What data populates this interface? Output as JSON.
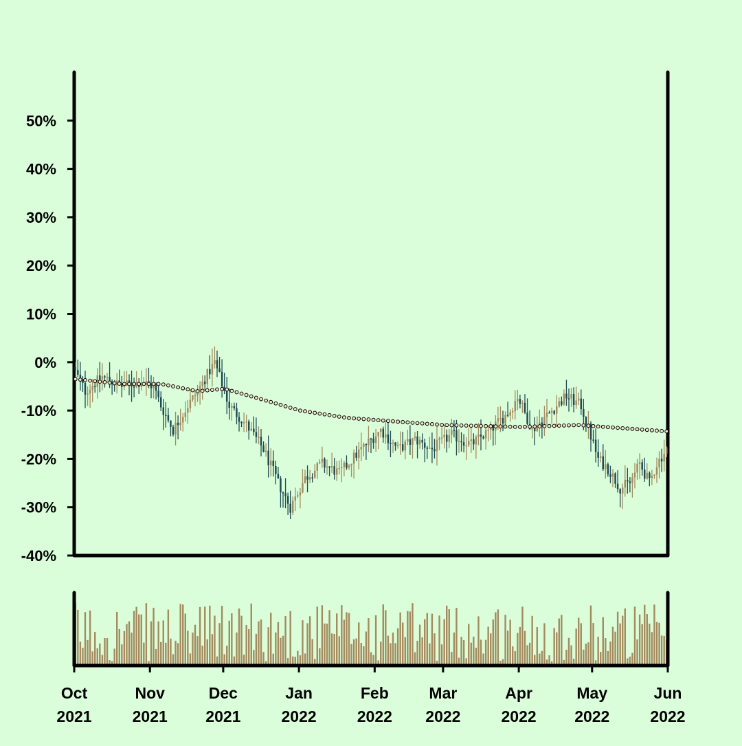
{
  "chart_data": {
    "type": "candlestick",
    "title": "",
    "xlabel": "",
    "ylabel": "",
    "colors": {
      "background": "#d9fed9",
      "up": "#a68a5e",
      "down": "#1e4a55",
      "moving_average_dots": "#f2e4c4",
      "axis": "#000000"
    },
    "price_panel": {
      "ylim": [
        -40,
        60
      ],
      "yticks": [
        -40,
        -30,
        -20,
        -10,
        0,
        10,
        20,
        30,
        40,
        50
      ],
      "ytick_labels": [
        "-40%",
        "-30%",
        "-20%",
        "-10%",
        "0%",
        "10%",
        "20%",
        "30%",
        "40%",
        "50%"
      ],
      "series": [
        {
          "kind": "daily-change-percent",
          "start_date": "2021-10-01",
          "end_date": "2022-05-31",
          "checkpoints": [
            {
              "date": "2021-10-01",
              "close": -2
            },
            {
              "date": "2021-10-05",
              "close": -6
            },
            {
              "date": "2021-10-12",
              "close": -3
            },
            {
              "date": "2021-10-20",
              "close": -5
            },
            {
              "date": "2021-10-28",
              "close": -4
            },
            {
              "date": "2021-11-02",
              "close": -5
            },
            {
              "date": "2021-11-05",
              "close": -9
            },
            {
              "date": "2021-11-10",
              "close": -14
            },
            {
              "date": "2021-11-16",
              "close": -9
            },
            {
              "date": "2021-11-20",
              "close": -6
            },
            {
              "date": "2021-11-27",
              "close": 0
            },
            {
              "date": "2021-12-03",
              "close": -9
            },
            {
              "date": "2021-12-10",
              "close": -13
            },
            {
              "date": "2021-12-17",
              "close": -18
            },
            {
              "date": "2021-12-23",
              "close": -25
            },
            {
              "date": "2021-12-28",
              "close": -30
            },
            {
              "date": "2022-01-03",
              "close": -24
            },
            {
              "date": "2022-01-10",
              "close": -21
            },
            {
              "date": "2022-01-17",
              "close": -23
            },
            {
              "date": "2022-01-26",
              "close": -18
            },
            {
              "date": "2022-02-03",
              "close": -14
            },
            {
              "date": "2022-02-10",
              "close": -18
            },
            {
              "date": "2022-02-17",
              "close": -16
            },
            {
              "date": "2022-02-24",
              "close": -18
            },
            {
              "date": "2022-03-04",
              "close": -15
            },
            {
              "date": "2022-03-12",
              "close": -17
            },
            {
              "date": "2022-03-20",
              "close": -14
            },
            {
              "date": "2022-03-28",
              "close": -10
            },
            {
              "date": "2022-03-31",
              "close": -7
            },
            {
              "date": "2022-04-06",
              "close": -14
            },
            {
              "date": "2022-04-14",
              "close": -10
            },
            {
              "date": "2022-04-20",
              "close": -7
            },
            {
              "date": "2022-04-26",
              "close": -9
            },
            {
              "date": "2022-05-03",
              "close": -20
            },
            {
              "date": "2022-05-07",
              "close": -22
            },
            {
              "date": "2022-05-12",
              "close": -26
            },
            {
              "date": "2022-05-16",
              "close": -25
            },
            {
              "date": "2022-05-20",
              "close": -21
            },
            {
              "date": "2022-05-24",
              "close": -25
            },
            {
              "date": "2022-05-27",
              "close": -21
            },
            {
              "date": "2022-05-31",
              "close": -18
            }
          ]
        },
        {
          "kind": "moving-average",
          "checkpoints": [
            {
              "date": "2021-10-01",
              "value": -3.5
            },
            {
              "date": "2021-10-20",
              "value": -4.5
            },
            {
              "date": "2021-11-05",
              "value": -4.5
            },
            {
              "date": "2021-11-20",
              "value": -6
            },
            {
              "date": "2021-12-01",
              "value": -5.5
            },
            {
              "date": "2021-12-15",
              "value": -7.5
            },
            {
              "date": "2022-01-01",
              "value": -10
            },
            {
              "date": "2022-01-20",
              "value": -11.5
            },
            {
              "date": "2022-02-10",
              "value": -12.3
            },
            {
              "date": "2022-03-01",
              "value": -13
            },
            {
              "date": "2022-04-01",
              "value": -13.4
            },
            {
              "date": "2022-04-25",
              "value": -13
            },
            {
              "date": "2022-05-31",
              "value": -14.3
            }
          ]
        }
      ]
    },
    "volume_panel": {
      "shown": true,
      "values_unlabeled": true
    },
    "xticks": [
      {
        "date": "2021-10-01",
        "line1": "Oct",
        "line2": "2021"
      },
      {
        "date": "2021-11-01",
        "line1": "Nov",
        "line2": "2021"
      },
      {
        "date": "2021-12-01",
        "line1": "Dec",
        "line2": "2021"
      },
      {
        "date": "2022-01-01",
        "line1": "Jan",
        "line2": "2022"
      },
      {
        "date": "2022-02-01",
        "line1": "Feb",
        "line2": "2022"
      },
      {
        "date": "2022-03-01",
        "line1": "Mar",
        "line2": "2022"
      },
      {
        "date": "2022-04-01",
        "line1": "Apr",
        "line2": "2022"
      },
      {
        "date": "2022-05-01",
        "line1": "May",
        "line2": "2022"
      },
      {
        "date": "2022-06-01",
        "line1": "Jun",
        "line2": "2022"
      }
    ]
  }
}
